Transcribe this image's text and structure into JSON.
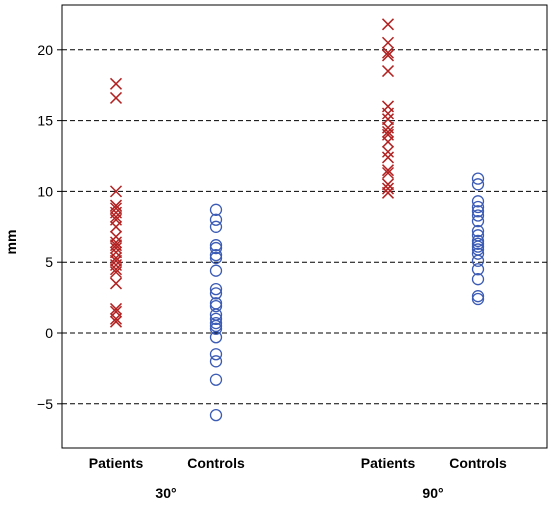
{
  "chart_data": {
    "type": "scatter",
    "title": "",
    "ylabel": "mm",
    "ylim": [
      -8,
      23
    ],
    "yticks": [
      20,
      15,
      10,
      5,
      0,
      -5
    ],
    "ytick_labels": [
      "20",
      "15",
      "10",
      "5",
      "0",
      "−5"
    ],
    "grid": "horizontal dashed",
    "categories": [
      "Patients",
      "Controls",
      "Patients",
      "Controls"
    ],
    "groups": [
      "30°",
      "90°"
    ],
    "colors": {
      "patients": "#b22222",
      "controls": "#3b5bb5"
    },
    "markers": {
      "patients": "x",
      "controls": "circle"
    },
    "series": [
      {
        "group": "30°",
        "category": "Patients",
        "marker": "x",
        "values": [
          17.6,
          16.6,
          10.0,
          9.0,
          8.8,
          8.5,
          8.2,
          8.0,
          7.5,
          6.8,
          6.4,
          6.2,
          6.0,
          5.7,
          5.3,
          5.1,
          4.8,
          4.5,
          4.3,
          3.5,
          1.7,
          1.5,
          1.0,
          0.8
        ]
      },
      {
        "group": "30°",
        "category": "Controls",
        "marker": "circle",
        "values": [
          8.7,
          8.0,
          7.5,
          6.2,
          6.0,
          5.5,
          5.3,
          4.4,
          3.1,
          2.8,
          2.1,
          1.9,
          1.3,
          1.0,
          0.7,
          0.5,
          0.3,
          -0.3,
          -1.5,
          -2.0,
          -3.3,
          -5.8
        ]
      },
      {
        "group": "90°",
        "category": "Patients",
        "marker": "x",
        "values": [
          21.8,
          20.5,
          19.8,
          19.6,
          18.5,
          16.0,
          15.5,
          15.1,
          14.5,
          14.2,
          14.0,
          13.5,
          12.8,
          12.4,
          11.5,
          11.3,
          10.5,
          10.2,
          9.9
        ]
      },
      {
        "group": "90°",
        "category": "Controls",
        "marker": "circle",
        "values": [
          10.9,
          10.5,
          9.3,
          8.9,
          8.6,
          8.3,
          7.9,
          7.2,
          6.9,
          6.5,
          6.3,
          6.1,
          5.9,
          5.6,
          5.1,
          4.5,
          3.8,
          2.6,
          2.4
        ]
      }
    ]
  }
}
